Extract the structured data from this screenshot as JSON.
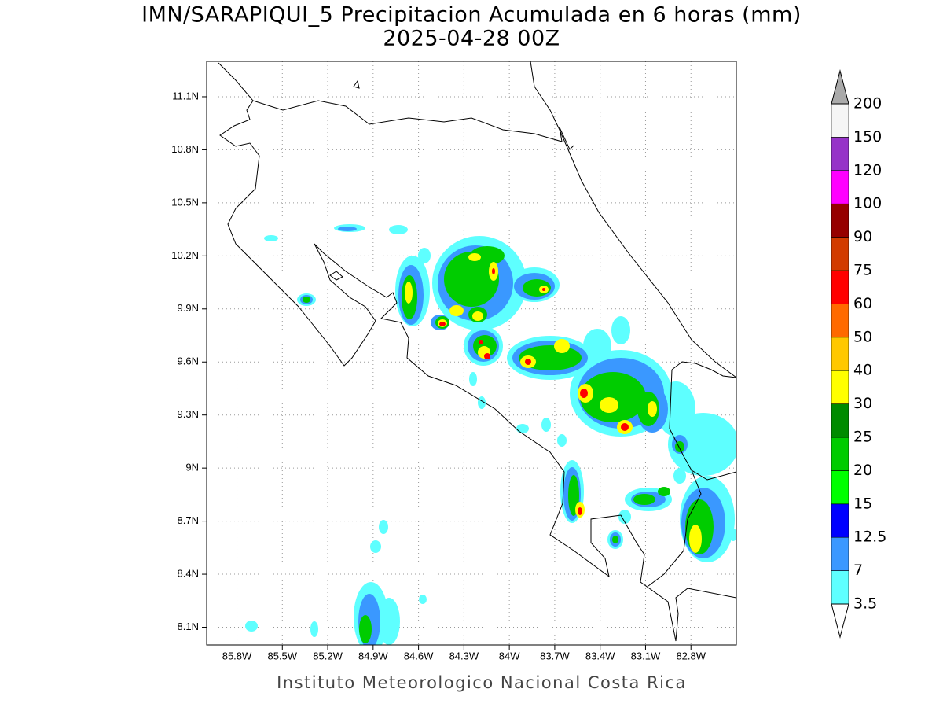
{
  "title": "IMN/SARAPIQUI_5 Precipitacion Acumulada en 6 horas (mm)",
  "subtitle": "2025-04-28 00Z",
  "footer": "Instituto Meteorologico Nacional Costa Rica",
  "map": {
    "xlim": [
      -86.0,
      -82.5
    ],
    "ylim": [
      8.0,
      11.3
    ],
    "xticks": [
      {
        "value": -85.8,
        "label": "85.8W"
      },
      {
        "value": -85.5,
        "label": "85.5W"
      },
      {
        "value": -85.2,
        "label": "85.2W"
      },
      {
        "value": -84.9,
        "label": "84.9W"
      },
      {
        "value": -84.6,
        "label": "84.6W"
      },
      {
        "value": -84.3,
        "label": "84.3W"
      },
      {
        "value": -84.0,
        "label": "84W"
      },
      {
        "value": -83.7,
        "label": "83.7W"
      },
      {
        "value": -83.4,
        "label": "83.4W"
      },
      {
        "value": -83.1,
        "label": "83.1W"
      },
      {
        "value": -82.8,
        "label": "82.8W"
      }
    ],
    "yticks": [
      {
        "value": 8.1,
        "label": "8.1N"
      },
      {
        "value": 8.4,
        "label": "8.4N"
      },
      {
        "value": 8.7,
        "label": "8.7N"
      },
      {
        "value": 9.0,
        "label": "9N"
      },
      {
        "value": 9.3,
        "label": "9.3N"
      },
      {
        "value": 9.6,
        "label": "9.6N"
      },
      {
        "value": 9.9,
        "label": "9.9N"
      },
      {
        "value": 10.2,
        "label": "10.2N"
      },
      {
        "value": 10.5,
        "label": "10.5N"
      },
      {
        "value": 10.8,
        "label": "10.8N"
      },
      {
        "value": 11.1,
        "label": "11.1N"
      }
    ],
    "grid": true
  },
  "colorbar": {
    "levels": [
      3.5,
      7,
      12.5,
      15,
      20,
      25,
      30,
      40,
      50,
      60,
      75,
      90,
      100,
      120,
      150,
      200
    ],
    "colors": [
      "#5effff",
      "#3a98ff",
      "#0000ff",
      "#00ff00",
      "#00cc00",
      "#008b00",
      "#ffff00",
      "#ffc800",
      "#ff6a00",
      "#ff0000",
      "#d23c00",
      "#960000",
      "#ff00ff",
      "#9632c8",
      "#f5f5f5"
    ],
    "under_color": "#ffffff",
    "over_color": "#aaaaaa"
  }
}
